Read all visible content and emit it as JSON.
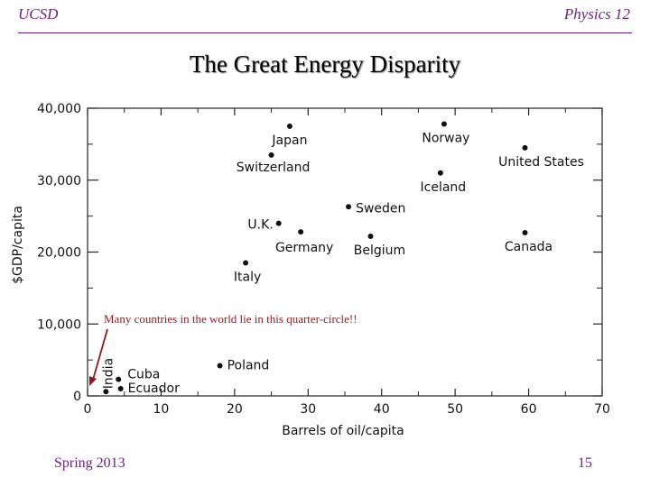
{
  "header": {
    "left": "UCSD",
    "right": "Physics 12"
  },
  "slide_title": "The Great Energy Disparity",
  "footer": {
    "left": "Spring 2013",
    "right": "15"
  },
  "chart_data": {
    "type": "scatter",
    "title": "",
    "xlabel": "Barrels of oil/capita",
    "ylabel": "$GDP/capita",
    "xlim": [
      0,
      70
    ],
    "ylim": [
      0,
      40000
    ],
    "x_ticks": [
      "0",
      "10",
      "20",
      "30",
      "40",
      "50",
      "60",
      "70"
    ],
    "y_ticks": [
      "0",
      "10,000",
      "20,000",
      "30,000",
      "40,000"
    ],
    "points": [
      {
        "name": "Japan",
        "x": 27.5,
        "y": 37500
      },
      {
        "name": "Norway",
        "x": 48.5,
        "y": 37800
      },
      {
        "name": "Switzerland",
        "x": 25,
        "y": 33500
      },
      {
        "name": "United States",
        "x": 59.5,
        "y": 34500
      },
      {
        "name": "Iceland",
        "x": 48,
        "y": 31000
      },
      {
        "name": "Sweden",
        "x": 35.5,
        "y": 26300
      },
      {
        "name": "U.K.",
        "x": 26,
        "y": 24000
      },
      {
        "name": "Germany",
        "x": 29,
        "y": 22800
      },
      {
        "name": "Belgium",
        "x": 38.5,
        "y": 22200
      },
      {
        "name": "Canada",
        "x": 59.5,
        "y": 22700
      },
      {
        "name": "Italy",
        "x": 21.5,
        "y": 18500
      },
      {
        "name": "Poland",
        "x": 18,
        "y": 4200
      },
      {
        "name": "Cuba",
        "x": 4.2,
        "y": 2300
      },
      {
        "name": "Ecuador",
        "x": 4.5,
        "y": 1000
      },
      {
        "name": "India",
        "x": 2.5,
        "y": 600
      }
    ],
    "annotation": "Many countries in the world lie in this quarter-circle!!"
  }
}
